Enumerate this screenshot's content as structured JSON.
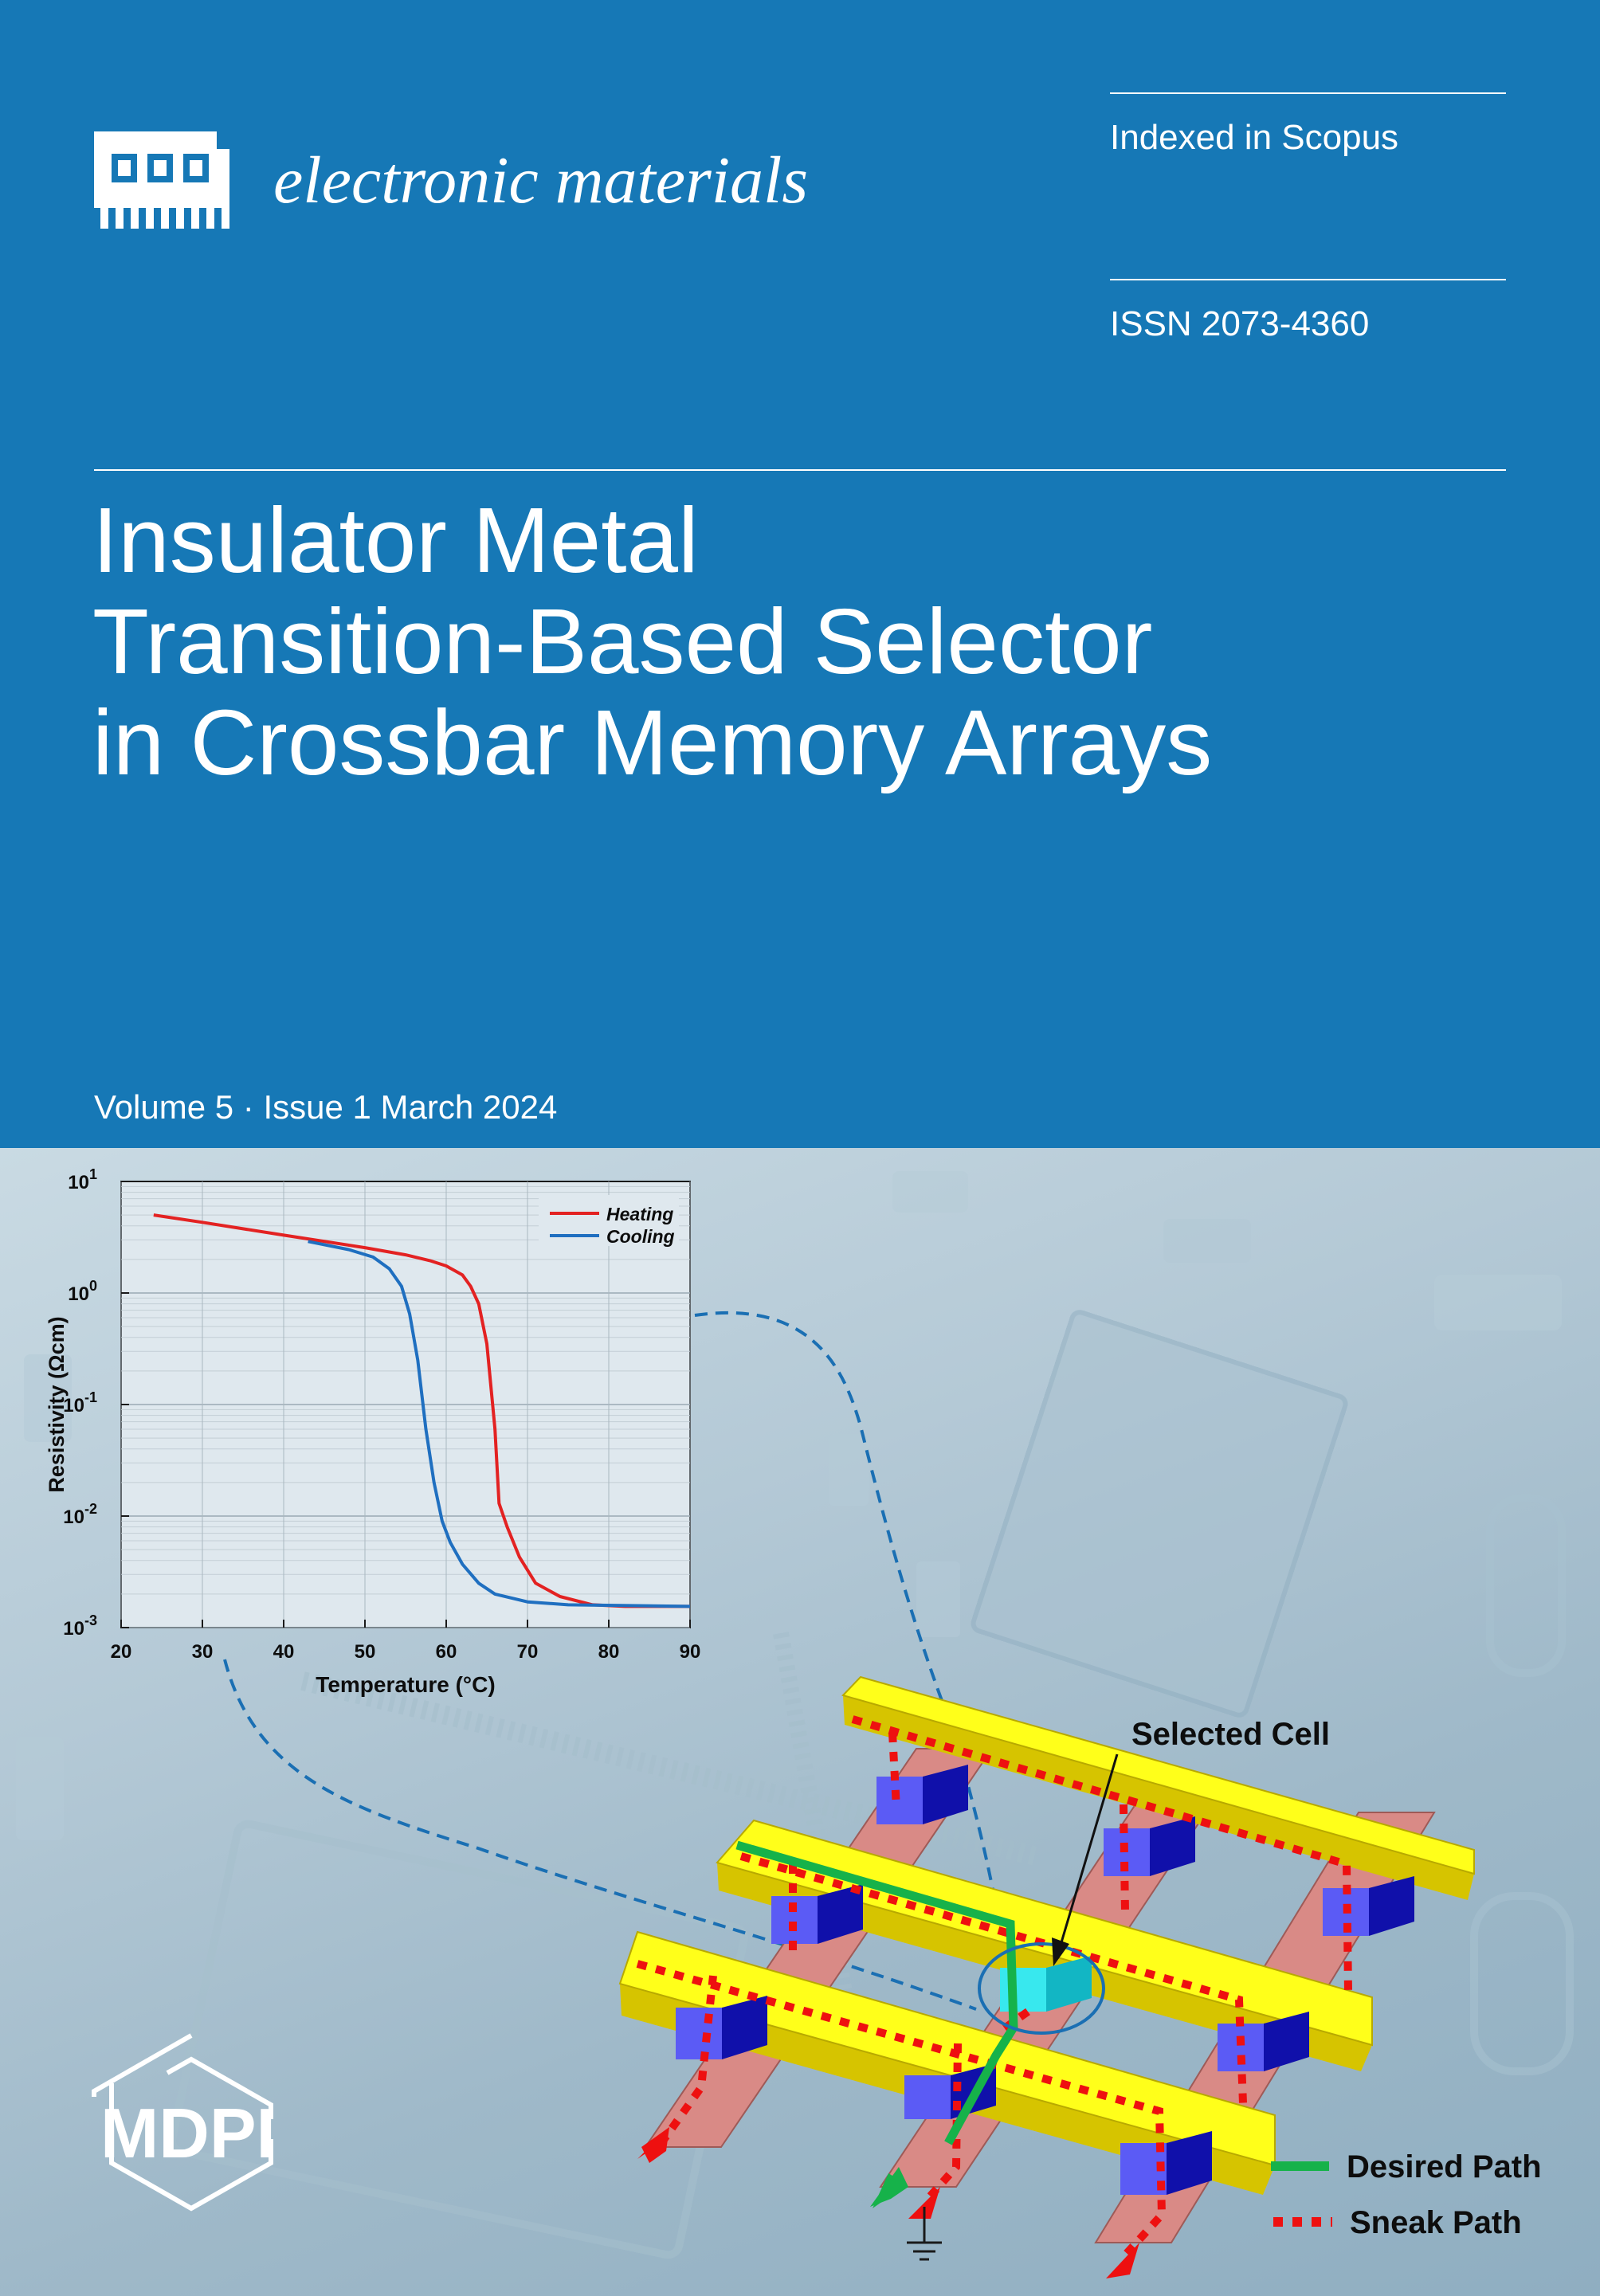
{
  "journal": {
    "name": "electronic materials",
    "indexed": "Indexed in Scopus",
    "issn": "ISSN 2073-4360",
    "logo_icon": "chip-icon"
  },
  "article": {
    "title_lines": [
      "Insulator Metal",
      "Transition-Based Selector",
      "in Crossbar Memory Arrays"
    ]
  },
  "issue": {
    "volume_line": "Volume 5 · Issue 1 March 2024"
  },
  "publisher": {
    "name": "MDPI"
  },
  "colors": {
    "brand_blue": "#1678b6",
    "heating": "#e32222",
    "cooling": "#1f6fc0",
    "bar_yellow": "#ffff1a",
    "desired_path": "#16b24a",
    "sneak_path": "#ee1010"
  },
  "chart_data": {
    "type": "line",
    "xlabel": "Temperature (°C)",
    "ylabel": "Resistivity (Ωcm)",
    "xlim": [
      20,
      90
    ],
    "ylim": [
      0.001,
      10
    ],
    "yscale": "log",
    "x_ticks": [
      "20",
      "30",
      "40",
      "50",
      "60",
      "70",
      "80",
      "90"
    ],
    "y_ticks": [
      {
        "base": "10",
        "exp": "1",
        "value": 10
      },
      {
        "base": "10",
        "exp": "0",
        "value": 1
      },
      {
        "base": "10",
        "exp": "-1",
        "value": 0.1
      },
      {
        "base": "10",
        "exp": "-2",
        "value": 0.01
      },
      {
        "base": "10",
        "exp": "-3",
        "value": 0.001
      }
    ],
    "grid": true,
    "legend_position": "top-right",
    "series": [
      {
        "name": "Heating",
        "color": "#e32222",
        "points": [
          [
            24,
            5.0
          ],
          [
            30,
            4.3
          ],
          [
            40,
            3.3
          ],
          [
            50,
            2.55
          ],
          [
            55,
            2.2
          ],
          [
            58,
            1.95
          ],
          [
            60,
            1.75
          ],
          [
            62,
            1.45
          ],
          [
            63,
            1.15
          ],
          [
            64,
            0.8
          ],
          [
            65,
            0.35
          ],
          [
            66,
            0.06
          ],
          [
            66.5,
            0.013
          ],
          [
            67.5,
            0.008
          ],
          [
            69,
            0.0043
          ],
          [
            71,
            0.0025
          ],
          [
            74,
            0.0019
          ],
          [
            78,
            0.0016
          ],
          [
            82,
            0.00155
          ],
          [
            90,
            0.00155
          ]
        ]
      },
      {
        "name": "Cooling",
        "color": "#1f6fc0",
        "points": [
          [
            43,
            2.9
          ],
          [
            48,
            2.45
          ],
          [
            51,
            2.1
          ],
          [
            53,
            1.65
          ],
          [
            54.5,
            1.15
          ],
          [
            55.5,
            0.65
          ],
          [
            56.5,
            0.25
          ],
          [
            57.5,
            0.06
          ],
          [
            58.5,
            0.02
          ],
          [
            59.5,
            0.009
          ],
          [
            60.5,
            0.0058
          ],
          [
            62,
            0.0037
          ],
          [
            64,
            0.0025
          ],
          [
            66,
            0.002
          ],
          [
            70,
            0.0017
          ],
          [
            75,
            0.0016
          ],
          [
            90,
            0.00155
          ]
        ]
      }
    ]
  },
  "diagram": {
    "selected_label": "Selected Cell",
    "legend": [
      {
        "label": "Desired Path",
        "style": "solid",
        "color": "#16b24a"
      },
      {
        "label": "Sneak Path",
        "style": "dotted",
        "color": "#ee1010"
      }
    ]
  }
}
